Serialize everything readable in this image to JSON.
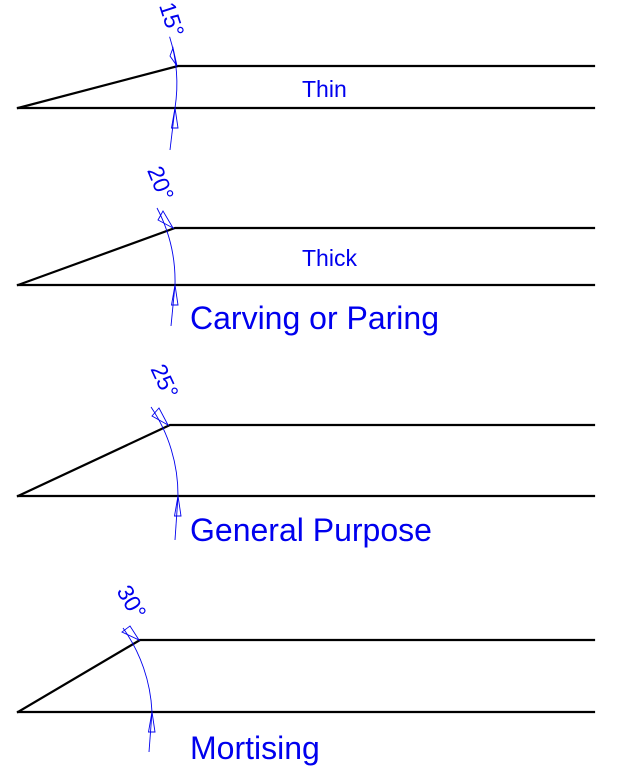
{
  "colors": {
    "line": "#000000",
    "accent": "#0000ee"
  },
  "bevels": [
    {
      "angle_deg": 15,
      "angle_label": "15°",
      "thickness_label": "Thin",
      "use_label": ""
    },
    {
      "angle_deg": 20,
      "angle_label": "20°",
      "thickness_label": "Thick",
      "use_label": "Carving or Paring"
    },
    {
      "angle_deg": 25,
      "angle_label": "25°",
      "thickness_label": "",
      "use_label": "General Purpose"
    },
    {
      "angle_deg": 30,
      "angle_label": "30°",
      "thickness_label": "",
      "use_label": "Mortising"
    }
  ]
}
